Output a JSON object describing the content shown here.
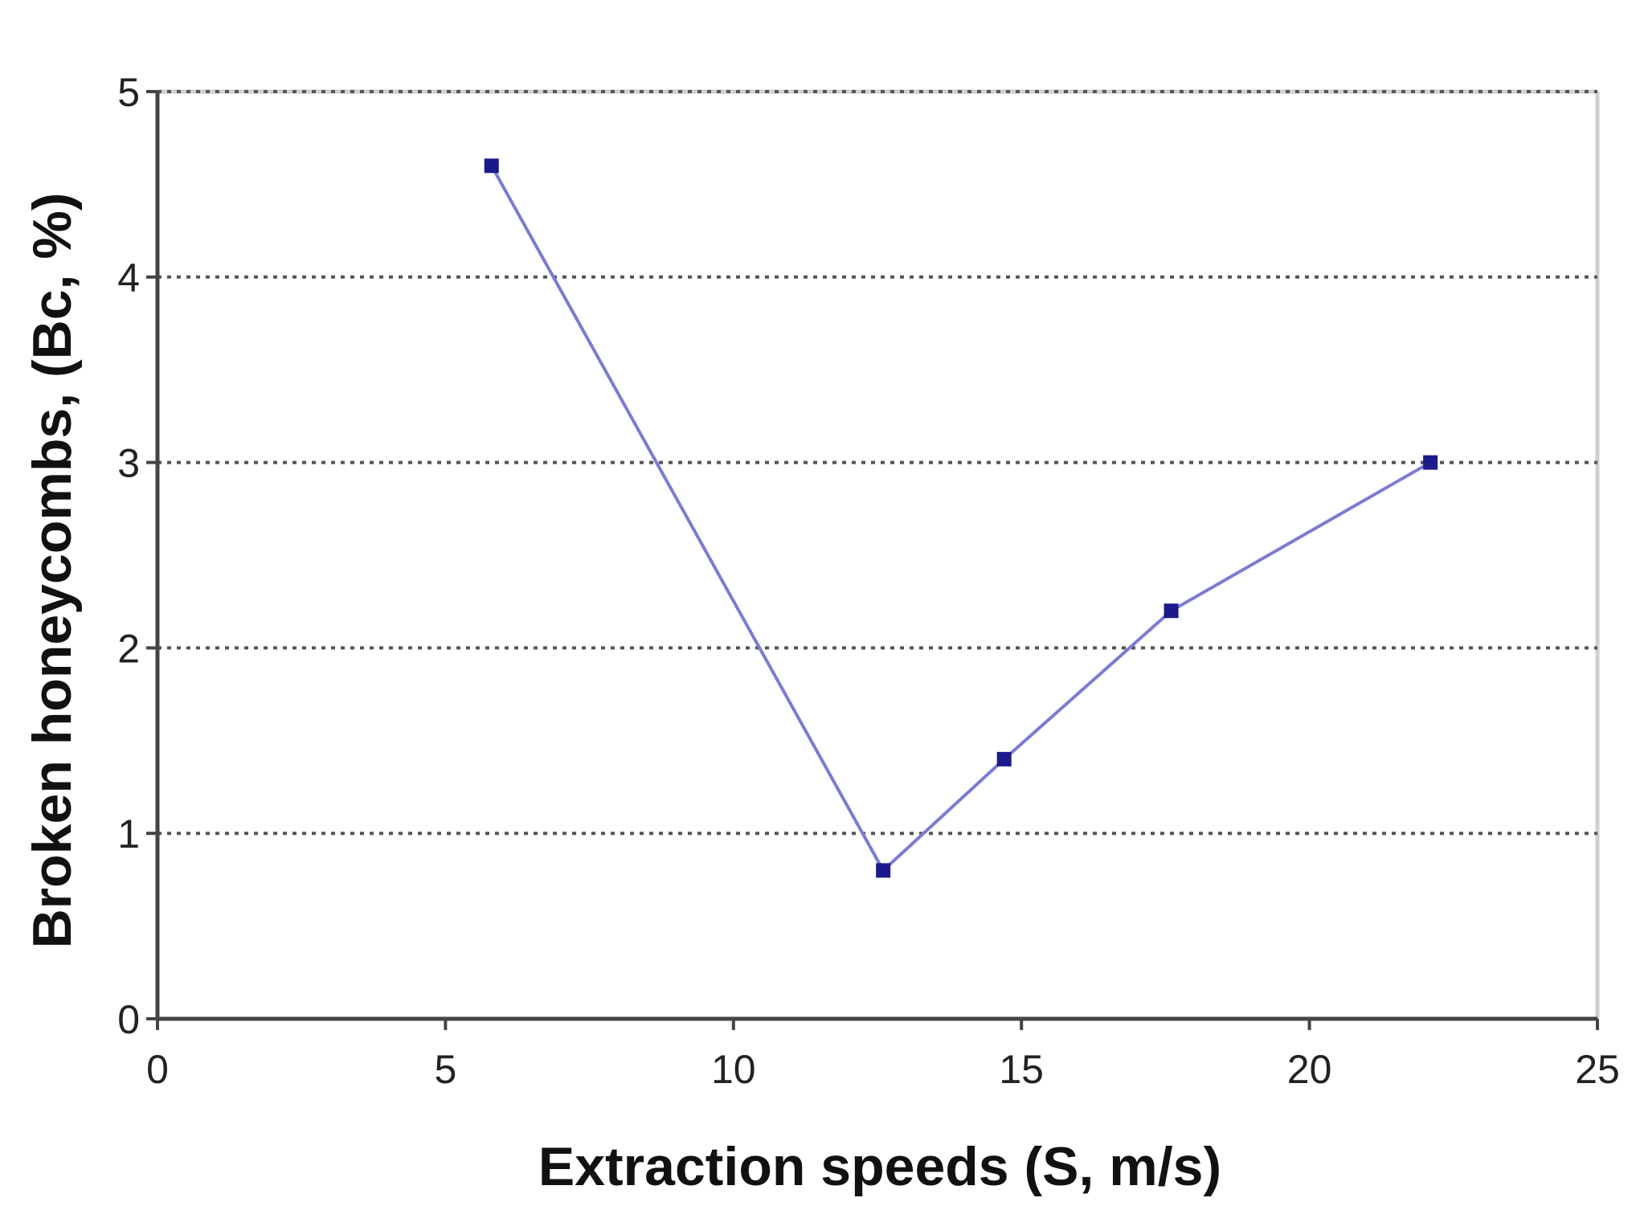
{
  "chart_data": {
    "type": "line",
    "title": "",
    "xlabel": "Extraction speeds (S, m/s)",
    "ylabel": "Broken honeycombs, (Bc, %)",
    "xlim": [
      0,
      25
    ],
    "ylim": [
      0,
      5
    ],
    "x_ticks": [
      0,
      5,
      10,
      15,
      20,
      25
    ],
    "y_ticks": [
      0,
      1,
      2,
      3,
      4,
      5
    ],
    "x_tick_labels": [
      "0",
      "5",
      "10",
      "15",
      "20",
      "25"
    ],
    "y_tick_labels": [
      "0",
      "1",
      "2",
      "3",
      "4",
      "5"
    ],
    "grid": "horizontal dotted",
    "series": [
      {
        "name": "Broken honeycombs",
        "color": "#7b7bd6",
        "marker_color": "#1a1a8c",
        "x": [
          5.8,
          12.6,
          14.7,
          17.6,
          22.1
        ],
        "y": [
          4.6,
          0.8,
          1.4,
          2.2,
          3.0
        ]
      }
    ]
  }
}
